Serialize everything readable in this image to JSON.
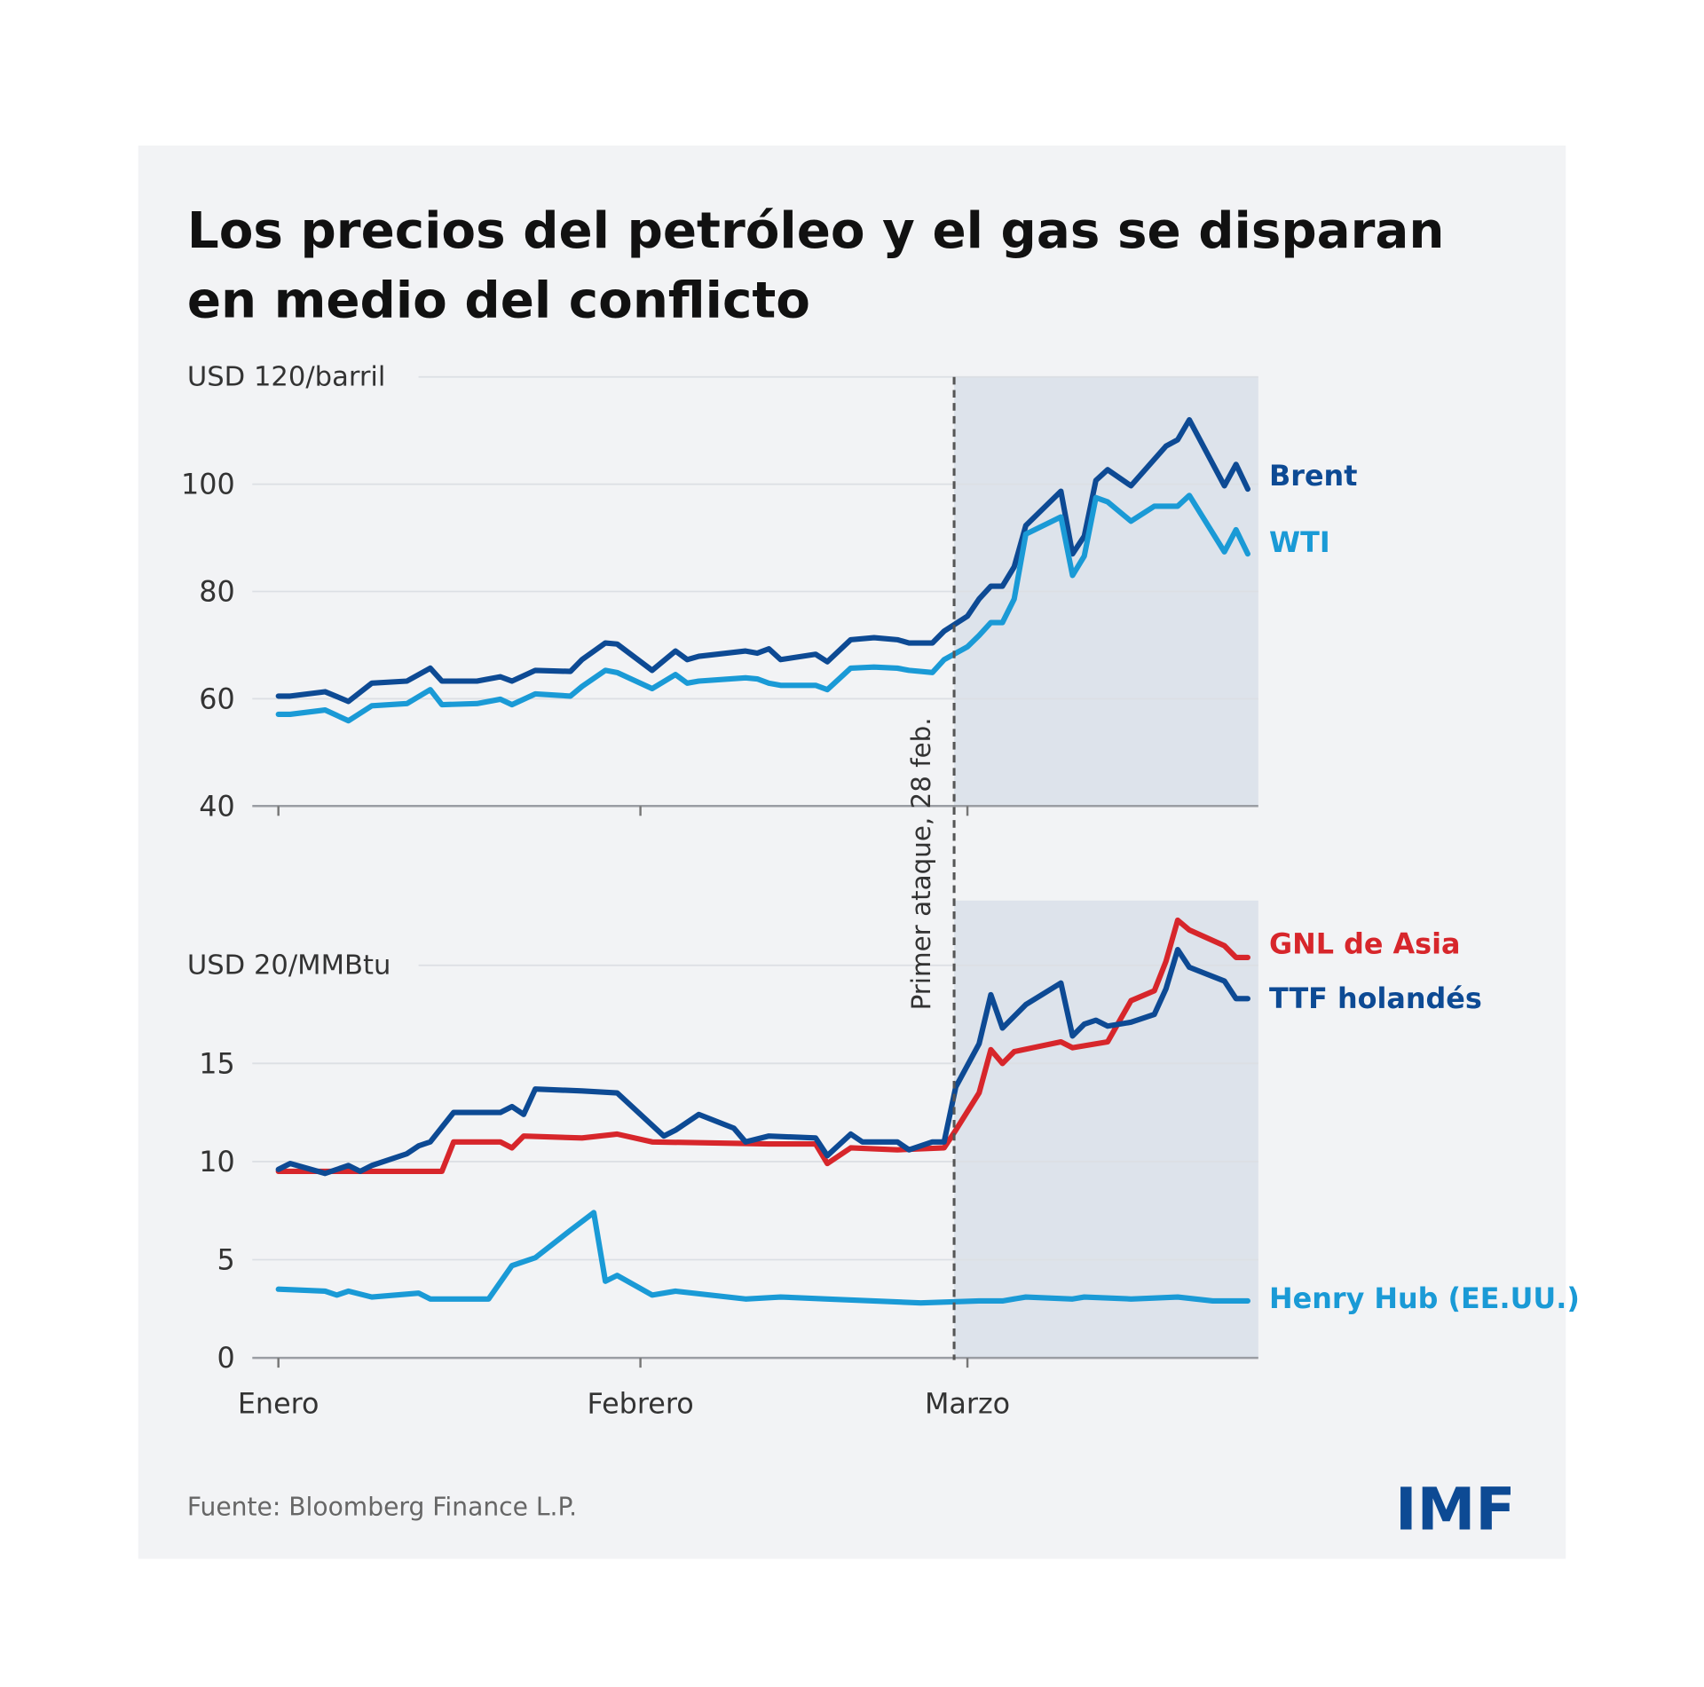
{
  "title_line1": "Los precios del petróleo y el gas se disparan",
  "title_line2": "en medio del conflicto",
  "source": "Fuente: Bloomberg Finance L.P.",
  "logo": "IMF",
  "annotation": "Primer ataque, 28 feb.",
  "annotation_date": "02-28",
  "colors": {
    "background": "#f2f3f5",
    "shade": "#dde3eb",
    "dark_blue": "#0d4a94",
    "light_blue": "#1a9ad6",
    "red": "#d7262b"
  },
  "x_ticks": [
    {
      "date": "01-01",
      "label": "Enero"
    },
    {
      "date": "02-01",
      "label": "Febrero"
    },
    {
      "date": "03-01",
      "label": "Marzo"
    }
  ],
  "chart_data": [
    {
      "type": "line",
      "unit_label": "USD 120/barril",
      "ylim": [
        40,
        120
      ],
      "yticks": [
        "40",
        "60",
        "80",
        "100"
      ],
      "shaded_from": "02-28",
      "grid": true,
      "series": [
        {
          "name": "Brent",
          "color": "#0d4a94",
          "points": [
            [
              "01-01",
              60.5
            ],
            [
              "01-02",
              60.5
            ],
            [
              "01-05",
              61.3
            ],
            [
              "01-07",
              59.5
            ],
            [
              "01-09",
              62.9
            ],
            [
              "01-12",
              63.3
            ],
            [
              "01-14",
              65.7
            ],
            [
              "01-15",
              63.3
            ],
            [
              "01-18",
              63.3
            ],
            [
              "01-20",
              64.1
            ],
            [
              "01-21",
              63.3
            ],
            [
              "01-23",
              65.3
            ],
            [
              "01-26",
              65.1
            ],
            [
              "01-27",
              67.3
            ],
            [
              "01-29",
              70.4
            ],
            [
              "01-30",
              70.2
            ],
            [
              "02-02",
              65.3
            ],
            [
              "02-04",
              68.9
            ],
            [
              "02-05",
              67.3
            ],
            [
              "02-06",
              67.9
            ],
            [
              "02-10",
              68.9
            ],
            [
              "02-11",
              68.5
            ],
            [
              "02-12",
              69.3
            ],
            [
              "02-13",
              67.3
            ],
            [
              "02-16",
              68.3
            ],
            [
              "02-17",
              66.9
            ],
            [
              "02-19",
              71.0
            ],
            [
              "02-21",
              71.4
            ],
            [
              "02-23",
              71.0
            ],
            [
              "02-24",
              70.4
            ],
            [
              "02-26",
              70.4
            ],
            [
              "02-27",
              72.6
            ],
            [
              "03-01",
              75.4
            ],
            [
              "03-02",
              78.6
            ],
            [
              "03-03",
              81.0
            ],
            [
              "03-04",
              81.0
            ],
            [
              "03-05",
              84.6
            ],
            [
              "03-06",
              92.3
            ],
            [
              "03-09",
              98.7
            ],
            [
              "03-10",
              87.0
            ],
            [
              "03-11",
              90.3
            ],
            [
              "03-12",
              100.7
            ],
            [
              "03-13",
              102.7
            ],
            [
              "03-15",
              99.7
            ],
            [
              "03-18",
              107.1
            ],
            [
              "03-19",
              108.3
            ],
            [
              "03-20",
              112.0
            ],
            [
              "03-23",
              99.7
            ],
            [
              "03-24",
              103.7
            ],
            [
              "03-25",
              99.1
            ]
          ]
        },
        {
          "name": "WTI",
          "color": "#1a9ad6",
          "points": [
            [
              "01-01",
              57.1
            ],
            [
              "01-02",
              57.1
            ],
            [
              "01-05",
              57.9
            ],
            [
              "01-07",
              55.9
            ],
            [
              "01-09",
              58.7
            ],
            [
              "01-12",
              59.1
            ],
            [
              "01-14",
              61.7
            ],
            [
              "01-15",
              58.9
            ],
            [
              "01-18",
              59.1
            ],
            [
              "01-20",
              59.9
            ],
            [
              "01-21",
              58.9
            ],
            [
              "01-23",
              60.9
            ],
            [
              "01-26",
              60.5
            ],
            [
              "01-27",
              62.3
            ],
            [
              "01-29",
              65.3
            ],
            [
              "01-30",
              64.9
            ],
            [
              "02-02",
              61.9
            ],
            [
              "02-04",
              64.5
            ],
            [
              "02-05",
              62.9
            ],
            [
              "02-06",
              63.3
            ],
            [
              "02-10",
              63.9
            ],
            [
              "02-11",
              63.7
            ],
            [
              "02-12",
              62.9
            ],
            [
              "02-13",
              62.5
            ],
            [
              "02-16",
              62.5
            ],
            [
              "02-17",
              61.7
            ],
            [
              "02-19",
              65.7
            ],
            [
              "02-21",
              65.9
            ],
            [
              "02-23",
              65.7
            ],
            [
              "02-24",
              65.3
            ],
            [
              "02-26",
              64.9
            ],
            [
              "02-27",
              67.3
            ],
            [
              "03-01",
              69.7
            ],
            [
              "03-02",
              71.8
            ],
            [
              "03-03",
              74.2
            ],
            [
              "03-04",
              74.2
            ],
            [
              "03-05",
              78.6
            ],
            [
              "03-06",
              90.7
            ],
            [
              "03-09",
              93.9
            ],
            [
              "03-10",
              83.0
            ],
            [
              "03-11",
              86.6
            ],
            [
              "03-12",
              97.5
            ],
            [
              "03-13",
              96.7
            ],
            [
              "03-15",
              93.1
            ],
            [
              "03-17",
              95.9
            ],
            [
              "03-19",
              95.9
            ],
            [
              "03-20",
              97.9
            ],
            [
              "03-23",
              87.4
            ],
            [
              "03-24",
              91.5
            ],
            [
              "03-25",
              87.0
            ]
          ]
        }
      ]
    },
    {
      "type": "line",
      "unit_label": "USD 20/MMBtu",
      "ylim": [
        0,
        23.3
      ],
      "yticks": [
        "0",
        "5",
        "10",
        "15"
      ],
      "shaded_from": "02-28",
      "grid": true,
      "series": [
        {
          "name": "GNL de Asia",
          "color": "#d7262b",
          "points": [
            [
              "01-01",
              9.5
            ],
            [
              "01-05",
              9.5
            ],
            [
              "01-15",
              9.5
            ],
            [
              "01-16",
              11.0
            ],
            [
              "01-20",
              11.0
            ],
            [
              "01-21",
              10.7
            ],
            [
              "01-22",
              11.3
            ],
            [
              "01-27",
              11.2
            ],
            [
              "01-30",
              11.4
            ],
            [
              "02-02",
              11.0
            ],
            [
              "02-12",
              10.9
            ],
            [
              "02-16",
              10.9
            ],
            [
              "02-17",
              9.9
            ],
            [
              "02-19",
              10.7
            ],
            [
              "02-23",
              10.6
            ],
            [
              "02-27",
              10.7
            ],
            [
              "02-28",
              11.6
            ],
            [
              "03-02",
              13.5
            ],
            [
              "03-03",
              15.7
            ],
            [
              "03-04",
              15.0
            ],
            [
              "03-05",
              15.6
            ],
            [
              "03-09",
              16.1
            ],
            [
              "03-10",
              15.8
            ],
            [
              "03-13",
              16.1
            ],
            [
              "03-15",
              18.2
            ],
            [
              "03-17",
              18.7
            ],
            [
              "03-18",
              20.2
            ],
            [
              "03-19",
              22.3
            ],
            [
              "03-20",
              21.8
            ],
            [
              "03-23",
              21.0
            ],
            [
              "03-24",
              20.4
            ],
            [
              "03-25",
              20.4
            ]
          ]
        },
        {
          "name": "TTF holandés",
          "color": "#0d4a94",
          "points": [
            [
              "01-01",
              9.6
            ],
            [
              "01-02",
              9.9
            ],
            [
              "01-05",
              9.4
            ],
            [
              "01-07",
              9.8
            ],
            [
              "01-08",
              9.5
            ],
            [
              "01-09",
              9.8
            ],
            [
              "01-12",
              10.4
            ],
            [
              "01-13",
              10.8
            ],
            [
              "01-14",
              11.0
            ],
            [
              "01-16",
              12.5
            ],
            [
              "01-20",
              12.5
            ],
            [
              "01-21",
              12.8
            ],
            [
              "01-22",
              12.4
            ],
            [
              "01-23",
              13.7
            ],
            [
              "01-27",
              13.6
            ],
            [
              "01-30",
              13.5
            ],
            [
              "02-03",
              11.3
            ],
            [
              "02-04",
              11.6
            ],
            [
              "02-06",
              12.4
            ],
            [
              "02-09",
              11.7
            ],
            [
              "02-10",
              11.0
            ],
            [
              "02-12",
              11.3
            ],
            [
              "02-16",
              11.2
            ],
            [
              "02-17",
              10.3
            ],
            [
              "02-19",
              11.4
            ],
            [
              "02-20",
              11.0
            ],
            [
              "02-23",
              11.0
            ],
            [
              "02-24",
              10.6
            ],
            [
              "02-26",
              11.0
            ],
            [
              "02-27",
              11.0
            ],
            [
              "02-28",
              13.8
            ],
            [
              "03-02",
              16.0
            ],
            [
              "03-03",
              18.5
            ],
            [
              "03-04",
              16.8
            ],
            [
              "03-06",
              18.0
            ],
            [
              "03-09",
              19.1
            ],
            [
              "03-10",
              16.4
            ],
            [
              "03-11",
              17.0
            ],
            [
              "03-12",
              17.2
            ],
            [
              "03-13",
              16.9
            ],
            [
              "03-15",
              17.1
            ],
            [
              "03-17",
              17.5
            ],
            [
              "03-18",
              18.8
            ],
            [
              "03-19",
              20.8
            ],
            [
              "03-20",
              19.9
            ],
            [
              "03-23",
              19.2
            ],
            [
              "03-24",
              18.3
            ],
            [
              "03-25",
              18.3
            ]
          ]
        },
        {
          "name": "Henry Hub (EE.UU.)",
          "color": "#1a9ad6",
          "points": [
            [
              "01-01",
              3.5
            ],
            [
              "01-05",
              3.4
            ],
            [
              "01-06",
              3.2
            ],
            [
              "01-07",
              3.4
            ],
            [
              "01-09",
              3.1
            ],
            [
              "01-13",
              3.3
            ],
            [
              "01-14",
              3.0
            ],
            [
              "01-19",
              3.0
            ],
            [
              "01-21",
              4.7
            ],
            [
              "01-23",
              5.1
            ],
            [
              "01-26",
              6.5
            ],
            [
              "01-28",
              7.4
            ],
            [
              "01-29",
              3.9
            ],
            [
              "01-30",
              4.2
            ],
            [
              "02-02",
              3.2
            ],
            [
              "02-04",
              3.4
            ],
            [
              "02-10",
              3.0
            ],
            [
              "02-13",
              3.1
            ],
            [
              "02-17",
              3.0
            ],
            [
              "02-25",
              2.8
            ],
            [
              "03-02",
              2.9
            ],
            [
              "03-04",
              2.9
            ],
            [
              "03-06",
              3.1
            ],
            [
              "03-10",
              3.0
            ],
            [
              "03-11",
              3.1
            ],
            [
              "03-15",
              3.0
            ],
            [
              "03-19",
              3.1
            ],
            [
              "03-22",
              2.9
            ],
            [
              "03-25",
              2.9
            ]
          ]
        }
      ]
    }
  ]
}
